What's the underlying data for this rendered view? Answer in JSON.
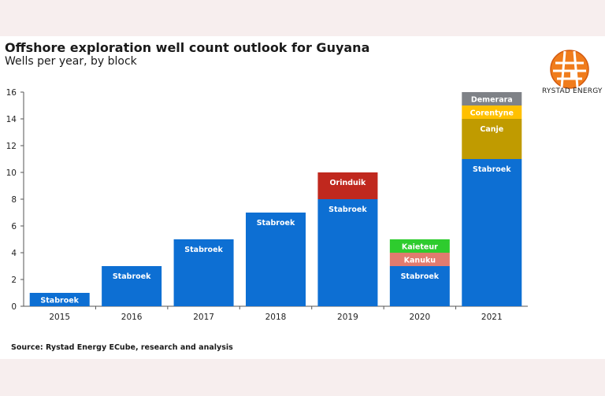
{
  "title": "Offshore exploration well count outlook for Guyana",
  "subtitle": "Wells per year, by block",
  "logo_text": "RYSTAD ENERGY",
  "source": "Source: Rystad Energy ECube, research and analysis",
  "colors": {
    "Stabroek": "#0d6fd3",
    "Orinduik": "#c0281e",
    "Kanuku": "#e17b6f",
    "Kaieteur": "#2ecc2e",
    "Canje": "#c09b00",
    "Corentyne": "#ffc000",
    "Demerara": "#7f8287"
  },
  "chart_data": {
    "type": "bar",
    "stacked": true,
    "categories": [
      "2015",
      "2016",
      "2017",
      "2018",
      "2019",
      "2020",
      "2021"
    ],
    "ylim": [
      0,
      16
    ],
    "yticks": [
      0,
      2,
      4,
      6,
      8,
      10,
      12,
      14,
      16
    ],
    "xlabel": "",
    "ylabel": "",
    "grid": false,
    "legend": "inline labels",
    "series": [
      {
        "name": "Stabroek",
        "values": [
          1,
          3,
          5,
          7,
          8,
          3,
          11
        ]
      },
      {
        "name": "Orinduik",
        "values": [
          0,
          0,
          0,
          0,
          2,
          0,
          0
        ]
      },
      {
        "name": "Kanuku",
        "values": [
          0,
          0,
          0,
          0,
          0,
          1,
          0
        ]
      },
      {
        "name": "Kaieteur",
        "values": [
          0,
          0,
          0,
          0,
          0,
          1,
          0
        ]
      },
      {
        "name": "Canje",
        "values": [
          0,
          0,
          0,
          0,
          0,
          0,
          3
        ]
      },
      {
        "name": "Corentyne",
        "values": [
          0,
          0,
          0,
          0,
          0,
          0,
          1
        ]
      },
      {
        "name": "Demerara",
        "values": [
          0,
          0,
          0,
          0,
          0,
          0,
          1
        ]
      }
    ]
  }
}
